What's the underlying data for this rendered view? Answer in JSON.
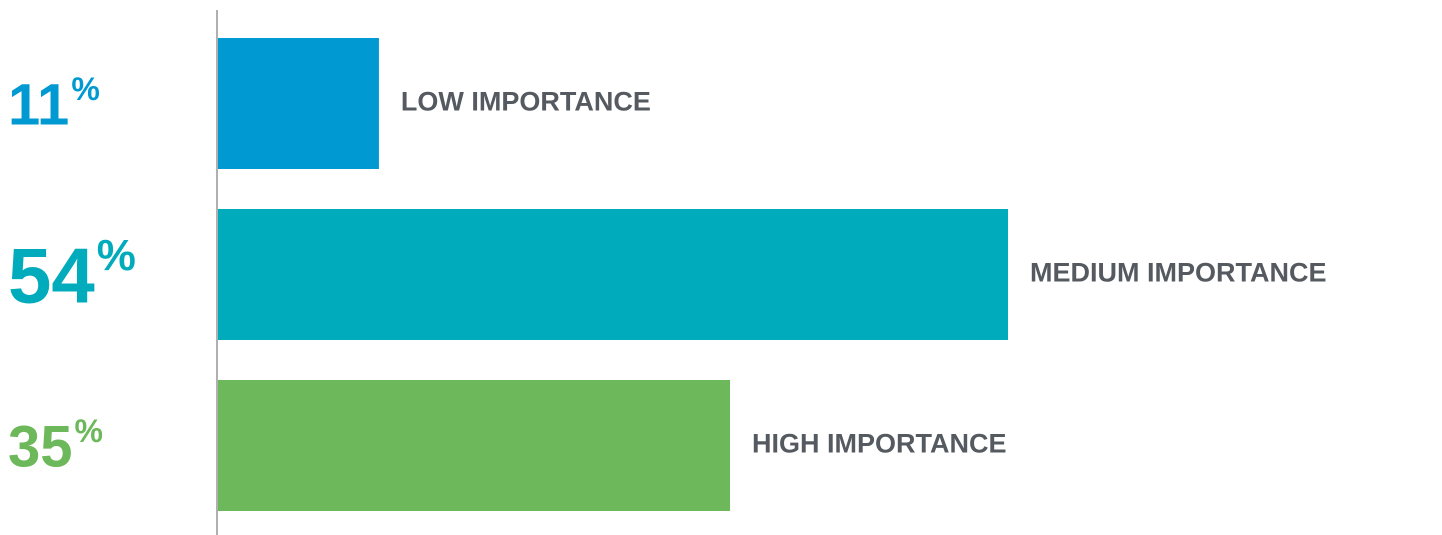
{
  "chart_data": {
    "type": "bar",
    "orientation": "horizontal",
    "categories": [
      "LOW IMPORTANCE",
      "MEDIUM IMPORTANCE",
      "HIGH IMPORTANCE"
    ],
    "values": [
      11,
      54,
      35
    ],
    "value_labels": [
      "11",
      "54",
      "35"
    ],
    "value_suffix": "%",
    "colors": [
      "#0099d2",
      "#00acbc",
      "#6db85a"
    ],
    "label_color": "#555a60",
    "axis_color": "#b0b0b0",
    "xlim": [
      0,
      54
    ],
    "grid": false,
    "legend": "none"
  }
}
